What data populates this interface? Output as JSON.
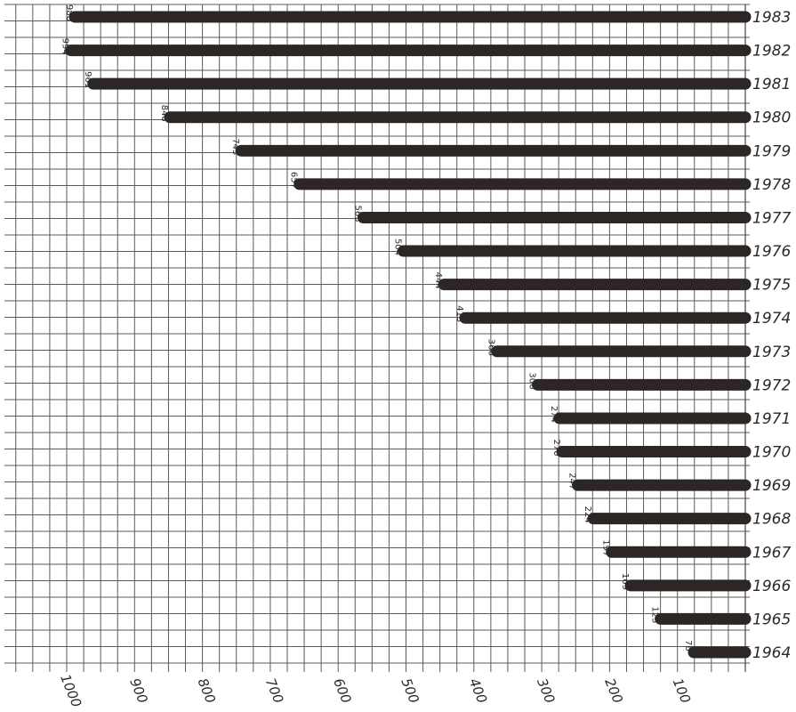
{
  "chart_data": {
    "type": "bar",
    "orientation": "horizontal",
    "categories": [
      "1964",
      "1965",
      "1966",
      "1967",
      "1968",
      "1969",
      "1970",
      "1971",
      "1972",
      "1973",
      "1974",
      "1975",
      "1976",
      "1977",
      "1978",
      "1979",
      "1980",
      "1981",
      "1982",
      "1983"
    ],
    "values": [
      76,
      125,
      169,
      197,
      224,
      247,
      270,
      274,
      306,
      366,
      413,
      444,
      504,
      563,
      657,
      743,
      848,
      961,
      994,
      988
    ],
    "data_labels": [
      "76",
      "125",
      "169",
      "197",
      "224",
      "247",
      "270",
      "274",
      "306",
      "366",
      "413",
      "444",
      "504",
      "563",
      "657",
      "743",
      "848",
      "961",
      "994",
      "988"
    ],
    "x_reversed": true,
    "xlim": [
      0,
      1050
    ],
    "xticks": [
      1000,
      900,
      800,
      700,
      600,
      500,
      400,
      300,
      200,
      100
    ],
    "xtick_labels": [
      "1000",
      "900",
      "800",
      "700",
      "600",
      "500",
      "400",
      "300",
      "200",
      "100"
    ],
    "grid": true,
    "bar_color": "#2c2624",
    "grid_color": "#555555",
    "title": "",
    "xlabel": "",
    "ylabel": ""
  }
}
